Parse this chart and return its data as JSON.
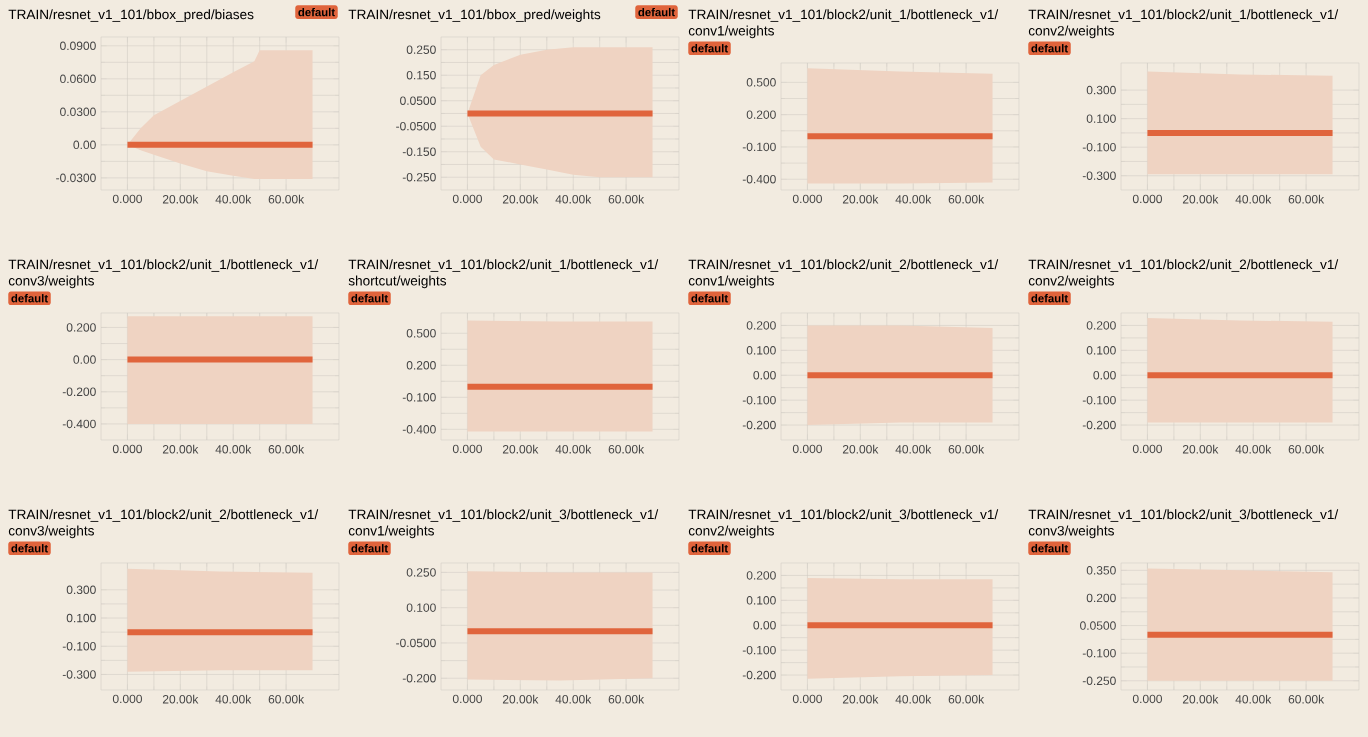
{
  "chart_data": [
    {
      "type": "line",
      "title": "TRAIN/resnet_v1_101/bbox_pred/biases",
      "legend": "top right",
      "grid": true,
      "xlim": [
        -10000,
        80000
      ],
      "ylim": [
        -0.041,
        0.098
      ],
      "xticks": [
        {
          "value": 0,
          "label": "0.000"
        },
        {
          "value": 20000,
          "label": "20.00k"
        },
        {
          "value": 40000,
          "label": "40.00k"
        },
        {
          "value": 60000,
          "label": "60.00k"
        }
      ],
      "yticks": [
        {
          "value": 0.09,
          "label": "0.0900"
        },
        {
          "value": 0.06,
          "label": "0.0600"
        },
        {
          "value": 0.03,
          "label": "0.0300"
        },
        {
          "value": 0,
          "label": "0.00"
        },
        {
          "value": -0.03,
          "label": "-0.0300"
        }
      ],
      "series": [
        {
          "name": "default",
          "color": "#e0643c",
          "x": [
            0,
            5000,
            10000,
            20000,
            30000,
            40000,
            48000,
            50000,
            60000,
            70000
          ],
          "values": [
            0,
            0,
            0,
            0,
            0,
            0,
            0,
            0,
            0,
            0
          ],
          "upper": [
            0,
            0.015,
            0.027,
            0.04,
            0.053,
            0.066,
            0.076,
            0.086,
            0.086,
            0.086
          ],
          "lower": [
            0,
            -0.005,
            -0.009,
            -0.017,
            -0.024,
            -0.028,
            -0.031,
            -0.031,
            -0.031,
            -0.031
          ]
        }
      ]
    },
    {
      "type": "line",
      "title": "TRAIN/resnet_v1_101/bbox_pred/weights",
      "legend": "top right",
      "grid": true,
      "xlim": [
        -10000,
        80000
      ],
      "ylim": [
        -0.3,
        0.3
      ],
      "xticks": [
        {
          "value": 0,
          "label": "0.000"
        },
        {
          "value": 20000,
          "label": "20.00k"
        },
        {
          "value": 40000,
          "label": "40.00k"
        },
        {
          "value": 60000,
          "label": "60.00k"
        }
      ],
      "yticks": [
        {
          "value": 0.25,
          "label": "0.250"
        },
        {
          "value": 0.15,
          "label": "0.150"
        },
        {
          "value": 0.05,
          "label": "0.0500"
        },
        {
          "value": -0.05,
          "label": "-0.0500"
        },
        {
          "value": -0.15,
          "label": "-0.150"
        },
        {
          "value": -0.25,
          "label": "-0.250"
        }
      ],
      "series": [
        {
          "name": "default",
          "color": "#e0643c",
          "x": [
            0,
            5000,
            10000,
            20000,
            30000,
            40000,
            50000,
            60000,
            70000
          ],
          "values": [
            0,
            0,
            0,
            0,
            0,
            0,
            0,
            0,
            0
          ],
          "upper": [
            0,
            0.15,
            0.19,
            0.23,
            0.25,
            0.26,
            0.26,
            0.26,
            0.26
          ],
          "lower": [
            0,
            -0.13,
            -0.18,
            -0.2,
            -0.22,
            -0.24,
            -0.25,
            -0.25,
            -0.25
          ]
        }
      ]
    },
    {
      "type": "line",
      "title": "TRAIN/resnet_v1_101/block2/unit_1/bottleneck_v1/conv1/weights",
      "legend": "top left",
      "grid": true,
      "xlim": [
        -10000,
        80000
      ],
      "ylim": [
        -0.5,
        0.68
      ],
      "xticks": [
        {
          "value": 0,
          "label": "0.000"
        },
        {
          "value": 20000,
          "label": "20.00k"
        },
        {
          "value": 40000,
          "label": "40.00k"
        },
        {
          "value": 60000,
          "label": "60.00k"
        }
      ],
      "yticks": [
        {
          "value": 0.5,
          "label": "0.500"
        },
        {
          "value": 0.2,
          "label": "0.200"
        },
        {
          "value": -0.1,
          "label": "-0.100"
        },
        {
          "value": -0.4,
          "label": "-0.400"
        }
      ],
      "series": [
        {
          "name": "default",
          "color": "#e0643c",
          "x": [
            0,
            35000,
            70000
          ],
          "values": [
            0,
            0,
            0
          ],
          "upper": [
            0.63,
            0.6,
            0.58
          ],
          "lower": [
            -0.44,
            -0.44,
            -0.43
          ]
        }
      ]
    },
    {
      "type": "line",
      "title": "TRAIN/resnet_v1_101/block2/unit_1/bottleneck_v1/conv2/weights",
      "legend": "top left",
      "grid": true,
      "xlim": [
        -10000,
        80000
      ],
      "ylim": [
        -0.4,
        0.49
      ],
      "xticks": [
        {
          "value": 0,
          "label": "0.000"
        },
        {
          "value": 20000,
          "label": "20.00k"
        },
        {
          "value": 40000,
          "label": "40.00k"
        },
        {
          "value": 60000,
          "label": "60.00k"
        }
      ],
      "yticks": [
        {
          "value": 0.3,
          "label": "0.300"
        },
        {
          "value": 0.1,
          "label": "0.100"
        },
        {
          "value": -0.1,
          "label": "-0.100"
        },
        {
          "value": -0.3,
          "label": "-0.300"
        }
      ],
      "series": [
        {
          "name": "default",
          "color": "#e0643c",
          "x": [
            0,
            35000,
            70000
          ],
          "values": [
            0,
            0,
            0
          ],
          "upper": [
            0.43,
            0.41,
            0.4
          ],
          "lower": [
            -0.29,
            -0.29,
            -0.29
          ]
        }
      ]
    },
    {
      "type": "line",
      "title": "TRAIN/resnet_v1_101/block2/unit_1/bottleneck_v1/conv3/weights",
      "legend": "top left",
      "grid": true,
      "xlim": [
        -10000,
        80000
      ],
      "ylim": [
        -0.5,
        0.29
      ],
      "xticks": [
        {
          "value": 0,
          "label": "0.000"
        },
        {
          "value": 20000,
          "label": "20.00k"
        },
        {
          "value": 40000,
          "label": "40.00k"
        },
        {
          "value": 60000,
          "label": "60.00k"
        }
      ],
      "yticks": [
        {
          "value": 0.2,
          "label": "0.200"
        },
        {
          "value": 0,
          "label": "0.00"
        },
        {
          "value": -0.2,
          "label": "-0.200"
        },
        {
          "value": -0.4,
          "label": "-0.400"
        }
      ],
      "series": [
        {
          "name": "default",
          "color": "#e0643c",
          "x": [
            0,
            35000,
            70000
          ],
          "values": [
            0,
            0,
            0
          ],
          "upper": [
            0.27,
            0.27,
            0.27
          ],
          "lower": [
            -0.4,
            -0.4,
            -0.4
          ]
        }
      ]
    },
    {
      "type": "line",
      "title": "TRAIN/resnet_v1_101/block2/unit_1/bottleneck_v1/shortcut/weights",
      "legend": "top left",
      "grid": true,
      "xlim": [
        -10000,
        80000
      ],
      "ylim": [
        -0.5,
        0.69
      ],
      "xticks": [
        {
          "value": 0,
          "label": "0.000"
        },
        {
          "value": 20000,
          "label": "20.00k"
        },
        {
          "value": 40000,
          "label": "40.00k"
        },
        {
          "value": 60000,
          "label": "60.00k"
        }
      ],
      "yticks": [
        {
          "value": 0.5,
          "label": "0.500"
        },
        {
          "value": 0.2,
          "label": "0.200"
        },
        {
          "value": -0.1,
          "label": "-0.100"
        },
        {
          "value": -0.4,
          "label": "-0.400"
        }
      ],
      "series": [
        {
          "name": "default",
          "color": "#e0643c",
          "x": [
            0,
            35000,
            70000
          ],
          "values": [
            0,
            0,
            0
          ],
          "upper": [
            0.62,
            0.61,
            0.61
          ],
          "lower": [
            -0.42,
            -0.42,
            -0.42
          ]
        }
      ]
    },
    {
      "type": "line",
      "title": "TRAIN/resnet_v1_101/block2/unit_2/bottleneck_v1/conv1/weights",
      "legend": "top left",
      "grid": true,
      "xlim": [
        -10000,
        80000
      ],
      "ylim": [
        -0.26,
        0.25
      ],
      "xticks": [
        {
          "value": 0,
          "label": "0.000"
        },
        {
          "value": 20000,
          "label": "20.00k"
        },
        {
          "value": 40000,
          "label": "40.00k"
        },
        {
          "value": 60000,
          "label": "60.00k"
        }
      ],
      "yticks": [
        {
          "value": 0.2,
          "label": "0.200"
        },
        {
          "value": 0.1,
          "label": "0.100"
        },
        {
          "value": 0,
          "label": "0.00"
        },
        {
          "value": -0.1,
          "label": "-0.100"
        },
        {
          "value": -0.2,
          "label": "-0.200"
        }
      ],
      "series": [
        {
          "name": "default",
          "color": "#e0643c",
          "x": [
            0,
            35000,
            70000
          ],
          "values": [
            0,
            0,
            0
          ],
          "upper": [
            0.2,
            0.2,
            0.19
          ],
          "lower": [
            -0.2,
            -0.19,
            -0.19
          ]
        }
      ]
    },
    {
      "type": "line",
      "title": "TRAIN/resnet_v1_101/block2/unit_2/bottleneck_v1/conv2/weights",
      "legend": "top left",
      "grid": true,
      "xlim": [
        -10000,
        80000
      ],
      "ylim": [
        -0.26,
        0.25
      ],
      "xticks": [
        {
          "value": 0,
          "label": "0.000"
        },
        {
          "value": 20000,
          "label": "20.00k"
        },
        {
          "value": 40000,
          "label": "40.00k"
        },
        {
          "value": 60000,
          "label": "60.00k"
        }
      ],
      "yticks": [
        {
          "value": 0.2,
          "label": "0.200"
        },
        {
          "value": 0.1,
          "label": "0.100"
        },
        {
          "value": 0,
          "label": "0.00"
        },
        {
          "value": -0.1,
          "label": "-0.100"
        },
        {
          "value": -0.2,
          "label": "-0.200"
        }
      ],
      "series": [
        {
          "name": "default",
          "color": "#e0643c",
          "x": [
            0,
            35000,
            70000
          ],
          "values": [
            0,
            0,
            0
          ],
          "upper": [
            0.23,
            0.22,
            0.215
          ],
          "lower": [
            -0.19,
            -0.19,
            -0.19
          ]
        }
      ]
    },
    {
      "type": "line",
      "title": "TRAIN/resnet_v1_101/block2/unit_2/bottleneck_v1/conv3/weights",
      "legend": "top left",
      "grid": true,
      "xlim": [
        -10000,
        80000
      ],
      "ylim": [
        -0.41,
        0.49
      ],
      "xticks": [
        {
          "value": 0,
          "label": "0.000"
        },
        {
          "value": 20000,
          "label": "20.00k"
        },
        {
          "value": 40000,
          "label": "40.00k"
        },
        {
          "value": 60000,
          "label": "60.00k"
        }
      ],
      "yticks": [
        {
          "value": 0.3,
          "label": "0.300"
        },
        {
          "value": 0.1,
          "label": "0.100"
        },
        {
          "value": -0.1,
          "label": "-0.100"
        },
        {
          "value": -0.3,
          "label": "-0.300"
        }
      ],
      "series": [
        {
          "name": "default",
          "color": "#e0643c",
          "x": [
            0,
            35000,
            70000
          ],
          "values": [
            0,
            0,
            0
          ],
          "upper": [
            0.45,
            0.43,
            0.42
          ],
          "lower": [
            -0.28,
            -0.27,
            -0.27
          ]
        }
      ]
    },
    {
      "type": "line",
      "title": "TRAIN/resnet_v1_101/block2/unit_3/bottleneck_v1/conv1/weights",
      "legend": "top left",
      "grid": true,
      "xlim": [
        -10000,
        80000
      ],
      "ylim": [
        -0.25,
        0.29
      ],
      "xticks": [
        {
          "value": 0,
          "label": "0.000"
        },
        {
          "value": 20000,
          "label": "20.00k"
        },
        {
          "value": 40000,
          "label": "40.00k"
        },
        {
          "value": 60000,
          "label": "60.00k"
        }
      ],
      "yticks": [
        {
          "value": 0.25,
          "label": "0.250"
        },
        {
          "value": 0.1,
          "label": "0.100"
        },
        {
          "value": -0.05,
          "label": "-0.0500"
        },
        {
          "value": -0.2,
          "label": "-0.200"
        }
      ],
      "series": [
        {
          "name": "default",
          "color": "#e0643c",
          "x": [
            0,
            35000,
            70000
          ],
          "values": [
            0,
            0,
            0
          ],
          "upper": [
            0.255,
            0.25,
            0.25
          ],
          "lower": [
            -0.205,
            -0.21,
            -0.2
          ]
        }
      ]
    },
    {
      "type": "line",
      "title": "TRAIN/resnet_v1_101/block2/unit_3/bottleneck_v1/conv2/weights",
      "legend": "top left",
      "grid": true,
      "xlim": [
        -10000,
        80000
      ],
      "ylim": [
        -0.26,
        0.25
      ],
      "xticks": [
        {
          "value": 0,
          "label": "0.000"
        },
        {
          "value": 20000,
          "label": "20.00k"
        },
        {
          "value": 40000,
          "label": "40.00k"
        },
        {
          "value": 60000,
          "label": "60.00k"
        }
      ],
      "yticks": [
        {
          "value": 0.2,
          "label": "0.200"
        },
        {
          "value": 0.1,
          "label": "0.100"
        },
        {
          "value": 0,
          "label": "0.00"
        },
        {
          "value": -0.1,
          "label": "-0.100"
        },
        {
          "value": -0.2,
          "label": "-0.200"
        }
      ],
      "series": [
        {
          "name": "default",
          "color": "#e0643c",
          "x": [
            0,
            35000,
            70000
          ],
          "values": [
            0,
            0,
            0
          ],
          "upper": [
            0.19,
            0.185,
            0.185
          ],
          "lower": [
            -0.215,
            -0.205,
            -0.2
          ]
        }
      ]
    },
    {
      "type": "line",
      "title": "TRAIN/resnet_v1_101/block2/unit_3/bottleneck_v1/conv3/weights",
      "legend": "top left",
      "grid": true,
      "xlim": [
        -10000,
        80000
      ],
      "ylim": [
        -0.3,
        0.39
      ],
      "xticks": [
        {
          "value": 0,
          "label": "0.000"
        },
        {
          "value": 20000,
          "label": "20.00k"
        },
        {
          "value": 40000,
          "label": "40.00k"
        },
        {
          "value": 60000,
          "label": "60.00k"
        }
      ],
      "yticks": [
        {
          "value": 0.35,
          "label": "0.350"
        },
        {
          "value": 0.2,
          "label": "0.200"
        },
        {
          "value": 0.05,
          "label": "0.0500"
        },
        {
          "value": -0.1,
          "label": "-0.100"
        },
        {
          "value": -0.25,
          "label": "-0.250"
        }
      ],
      "series": [
        {
          "name": "default",
          "color": "#e0643c",
          "x": [
            0,
            35000,
            70000
          ],
          "values": [
            0,
            0,
            0
          ],
          "upper": [
            0.36,
            0.35,
            0.34
          ],
          "lower": [
            -0.25,
            -0.25,
            -0.25
          ]
        }
      ]
    }
  ]
}
